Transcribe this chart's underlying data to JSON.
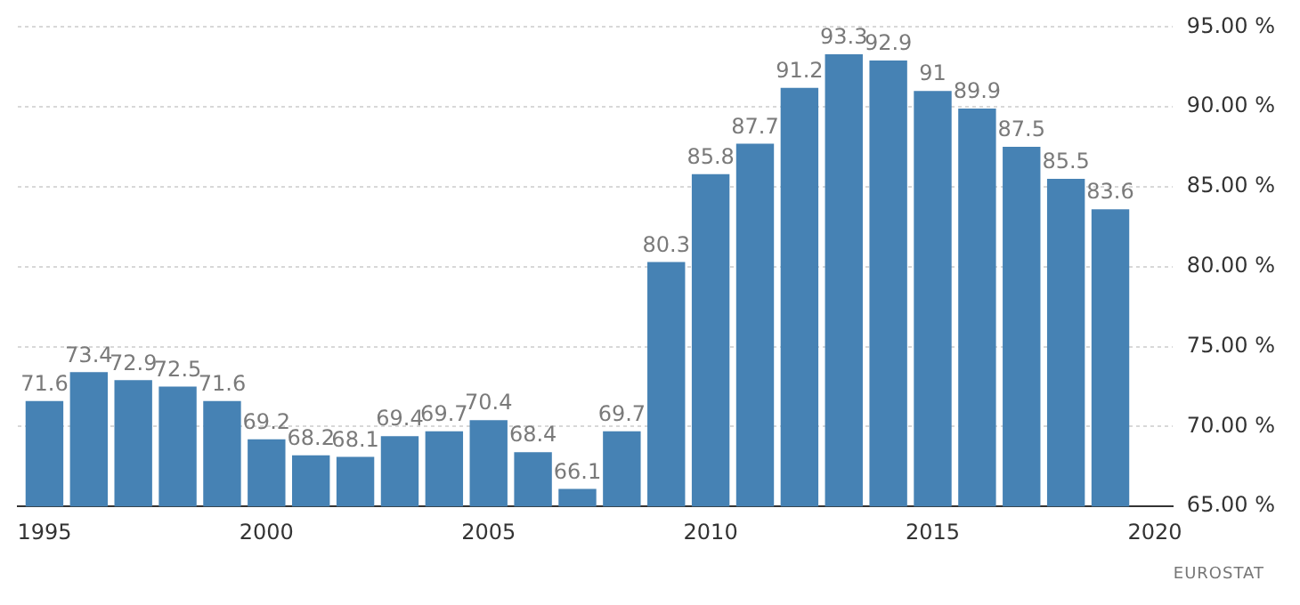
{
  "chart_data": {
    "type": "bar",
    "x": [
      1995,
      1996,
      1997,
      1998,
      1999,
      2000,
      2001,
      2002,
      2003,
      2004,
      2005,
      2006,
      2007,
      2008,
      2009,
      2010,
      2011,
      2012,
      2013,
      2014,
      2015,
      2016,
      2017,
      2018,
      2019
    ],
    "values": [
      71.6,
      73.4,
      72.9,
      72.5,
      71.6,
      69.2,
      68.2,
      68.1,
      69.4,
      69.7,
      70.4,
      68.4,
      66.1,
      69.7,
      80.3,
      85.8,
      87.7,
      91.2,
      93.3,
      92.9,
      91,
      89.9,
      87.5,
      85.5,
      83.6
    ],
    "color": "#4682b4",
    "xlim": [
      1994.4,
      2020.4
    ],
    "xticks": [
      1995,
      2000,
      2005,
      2010,
      2015,
      2020
    ],
    "ylim": [
      65,
      95
    ],
    "yticks": [
      {
        "value": 65,
        "label": "65.00 %"
      },
      {
        "value": 70,
        "label": "70.00 %"
      },
      {
        "value": 75,
        "label": "75.00 %"
      },
      {
        "value": 80,
        "label": "80.00 %"
      },
      {
        "value": 85,
        "label": "85.00 %"
      },
      {
        "value": 90,
        "label": "90.00 %"
      },
      {
        "value": 95,
        "label": "95.00 %"
      }
    ],
    "grid": "y",
    "data_labels": true,
    "legend": false,
    "annotations": [
      "EUROSTAT"
    ]
  }
}
